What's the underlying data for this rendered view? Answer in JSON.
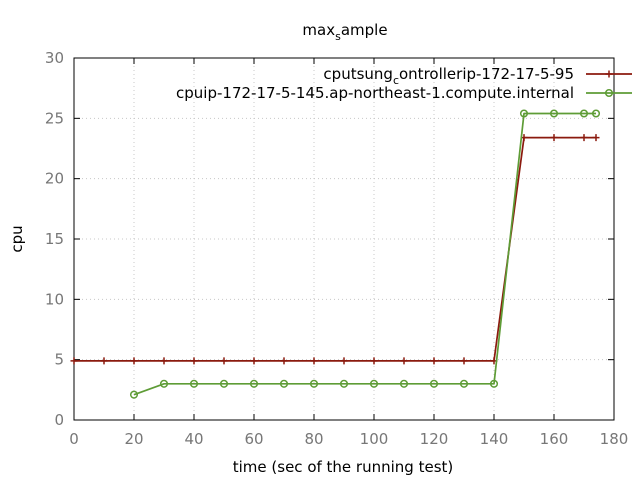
{
  "chart_data": {
    "type": "line",
    "title": "max_sample",
    "title_parts": {
      "base": "max",
      "sub": "s",
      "rest": "ample"
    },
    "xlabel": "time (sec of the running test)",
    "ylabel": "cpu",
    "xlim": [
      0,
      180
    ],
    "ylim": [
      0,
      30
    ],
    "xticks": [
      0,
      20,
      40,
      60,
      80,
      100,
      120,
      140,
      160,
      180
    ],
    "yticks": [
      0,
      5,
      10,
      15,
      20,
      25,
      30
    ],
    "grid": true,
    "legend_position": "top-right",
    "series": [
      {
        "name": "cpu_tsung_controller_ip-172-17-5-95",
        "label_parts": [
          {
            "t": "cpu",
            "s": ""
          },
          {
            "t": "tsung",
            "s": ""
          },
          {
            "t": "c",
            "s": "sub"
          },
          {
            "t": "ontroller",
            "s": ""
          },
          {
            "t": "ip-172-17-5-95",
            "s": ""
          }
        ],
        "color": "#8b1a0e",
        "marker": "plus",
        "x": [
          0,
          10,
          20,
          30,
          40,
          50,
          60,
          70,
          80,
          90,
          100,
          110,
          120,
          130,
          140,
          150,
          160,
          170,
          174
        ],
        "y": [
          4.9,
          4.9,
          4.9,
          4.9,
          4.9,
          4.9,
          4.9,
          4.9,
          4.9,
          4.9,
          4.9,
          4.9,
          4.9,
          4.9,
          4.9,
          23.4,
          23.4,
          23.4,
          23.4
        ]
      },
      {
        "name": "cpu_ip-172-17-5-145.ap-northeast-1.compute.internal",
        "label_parts": [
          {
            "t": "cpu",
            "s": ""
          },
          {
            "t": "ip-172-17-5-145.ap-northeast-1.compute.internal",
            "s": ""
          }
        ],
        "color": "#5e9c36",
        "marker": "circle",
        "x": [
          20,
          30,
          40,
          50,
          60,
          70,
          80,
          90,
          100,
          110,
          120,
          130,
          140,
          150,
          160,
          170,
          174
        ],
        "y": [
          2.1,
          3.0,
          3.0,
          3.0,
          3.0,
          3.0,
          3.0,
          3.0,
          3.0,
          3.0,
          3.0,
          3.0,
          3.0,
          25.4,
          25.4,
          25.4,
          25.4
        ]
      }
    ]
  }
}
